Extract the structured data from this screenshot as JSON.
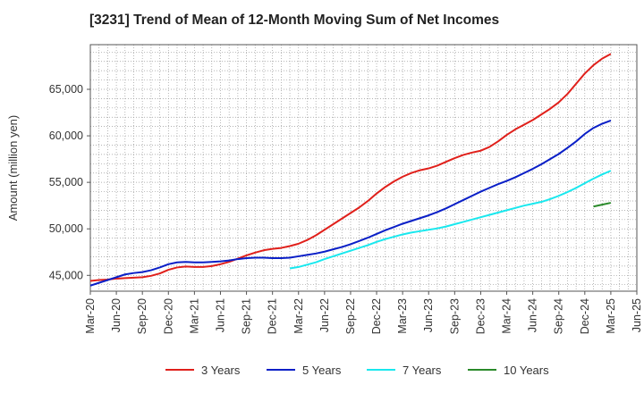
{
  "title": "[3231]  Trend of Mean of 12-Month Moving Sum of Net Incomes",
  "chart_data": {
    "type": "line",
    "title": "[3231]  Trend of Mean of 12-Month Moving Sum of Net Incomes",
    "xlabel": "",
    "ylabel": "Amount (million yen)",
    "ylim": [
      43300,
      69800
    ],
    "yticks": [
      45000,
      50000,
      55000,
      60000,
      65000
    ],
    "ytick_labels": [
      "45,000",
      "50,000",
      "55,000",
      "60,000",
      "65,000"
    ],
    "xticks": [
      "Mar-20",
      "Jun-20",
      "Sep-20",
      "Dec-20",
      "Mar-21",
      "Jun-21",
      "Sep-21",
      "Dec-21",
      "Mar-22",
      "Jun-22",
      "Sep-22",
      "Dec-22",
      "Mar-23",
      "Jun-23",
      "Sep-23",
      "Dec-23",
      "Mar-24",
      "Jun-24",
      "Sep-24",
      "Dec-24",
      "Mar-25",
      "Jun-25"
    ],
    "grid": true,
    "legend_position": "bottom",
    "series": [
      {
        "name": "3 Years",
        "color": "#e0201b",
        "points": [
          [
            "Mar-20",
            44400
          ],
          [
            "Apr-20",
            44500
          ],
          [
            "May-20",
            44550
          ],
          [
            "Jun-20",
            44650
          ],
          [
            "Jul-20",
            44700
          ],
          [
            "Aug-20",
            44750
          ],
          [
            "Sep-20",
            44800
          ],
          [
            "Oct-20",
            44950
          ],
          [
            "Nov-20",
            45200
          ],
          [
            "Dec-20",
            45600
          ],
          [
            "Jan-21",
            45850
          ],
          [
            "Feb-21",
            45950
          ],
          [
            "Mar-21",
            45900
          ],
          [
            "Apr-21",
            45900
          ],
          [
            "May-21",
            46000
          ],
          [
            "Jun-21",
            46200
          ],
          [
            "Jul-21",
            46450
          ],
          [
            "Aug-21",
            46800
          ],
          [
            "Sep-21",
            47150
          ],
          [
            "Oct-21",
            47450
          ],
          [
            "Nov-21",
            47700
          ],
          [
            "Dec-21",
            47850
          ],
          [
            "Jan-22",
            47950
          ],
          [
            "Feb-22",
            48150
          ],
          [
            "Mar-22",
            48400
          ],
          [
            "Apr-22",
            48800
          ],
          [
            "May-22",
            49300
          ],
          [
            "Jun-22",
            49900
          ],
          [
            "Jul-22",
            50500
          ],
          [
            "Aug-22",
            51100
          ],
          [
            "Sep-22",
            51700
          ],
          [
            "Oct-22",
            52300
          ],
          [
            "Nov-22",
            53000
          ],
          [
            "Dec-22",
            53800
          ],
          [
            "Jan-23",
            54500
          ],
          [
            "Feb-23",
            55100
          ],
          [
            "Mar-23",
            55600
          ],
          [
            "Apr-23",
            56000
          ],
          [
            "May-23",
            56300
          ],
          [
            "Jun-23",
            56500
          ],
          [
            "Jul-23",
            56800
          ],
          [
            "Aug-23",
            57200
          ],
          [
            "Sep-23",
            57600
          ],
          [
            "Oct-23",
            57950
          ],
          [
            "Nov-23",
            58200
          ],
          [
            "Dec-23",
            58400
          ],
          [
            "Jan-24",
            58800
          ],
          [
            "Feb-24",
            59400
          ],
          [
            "Mar-24",
            60100
          ],
          [
            "Apr-24",
            60700
          ],
          [
            "May-24",
            61200
          ],
          [
            "Jun-24",
            61700
          ],
          [
            "Jul-24",
            62300
          ],
          [
            "Aug-24",
            62900
          ],
          [
            "Sep-24",
            63600
          ],
          [
            "Oct-24",
            64500
          ],
          [
            "Nov-24",
            65600
          ],
          [
            "Dec-24",
            66700
          ],
          [
            "Jan-25",
            67600
          ],
          [
            "Feb-25",
            68300
          ],
          [
            "Mar-25",
            68800
          ]
        ]
      },
      {
        "name": "5 Years",
        "color": "#0a1fc7",
        "points": [
          [
            "Mar-20",
            43900
          ],
          [
            "Apr-20",
            44200
          ],
          [
            "May-20",
            44500
          ],
          [
            "Jun-20",
            44800
          ],
          [
            "Jul-20",
            45100
          ],
          [
            "Aug-20",
            45250
          ],
          [
            "Sep-20",
            45350
          ],
          [
            "Oct-20",
            45550
          ],
          [
            "Nov-20",
            45850
          ],
          [
            "Dec-20",
            46200
          ],
          [
            "Jan-21",
            46400
          ],
          [
            "Feb-21",
            46450
          ],
          [
            "Mar-21",
            46400
          ],
          [
            "Apr-21",
            46400
          ],
          [
            "May-21",
            46450
          ],
          [
            "Jun-21",
            46500
          ],
          [
            "Jul-21",
            46600
          ],
          [
            "Aug-21",
            46750
          ],
          [
            "Sep-21",
            46850
          ],
          [
            "Oct-21",
            46900
          ],
          [
            "Nov-21",
            46900
          ],
          [
            "Dec-21",
            46850
          ],
          [
            "Jan-22",
            46850
          ],
          [
            "Feb-22",
            46900
          ],
          [
            "Mar-22",
            47050
          ],
          [
            "Apr-22",
            47200
          ],
          [
            "May-22",
            47350
          ],
          [
            "Jun-22",
            47550
          ],
          [
            "Jul-22",
            47800
          ],
          [
            "Aug-22",
            48050
          ],
          [
            "Sep-22",
            48350
          ],
          [
            "Oct-22",
            48700
          ],
          [
            "Nov-22",
            49050
          ],
          [
            "Dec-22",
            49450
          ],
          [
            "Jan-23",
            49850
          ],
          [
            "Feb-23",
            50200
          ],
          [
            "Mar-23",
            50550
          ],
          [
            "Apr-23",
            50850
          ],
          [
            "May-23",
            51150
          ],
          [
            "Jun-23",
            51450
          ],
          [
            "Jul-23",
            51800
          ],
          [
            "Aug-23",
            52200
          ],
          [
            "Sep-23",
            52650
          ],
          [
            "Oct-23",
            53100
          ],
          [
            "Nov-23",
            53550
          ],
          [
            "Dec-23",
            54000
          ],
          [
            "Jan-24",
            54400
          ],
          [
            "Feb-24",
            54800
          ],
          [
            "Mar-24",
            55150
          ],
          [
            "Apr-24",
            55550
          ],
          [
            "May-24",
            56000
          ],
          [
            "Jun-24",
            56450
          ],
          [
            "Jul-24",
            56950
          ],
          [
            "Aug-24",
            57500
          ],
          [
            "Sep-24",
            58050
          ],
          [
            "Oct-24",
            58700
          ],
          [
            "Nov-24",
            59400
          ],
          [
            "Dec-24",
            60200
          ],
          [
            "Jan-25",
            60850
          ],
          [
            "Feb-25",
            61300
          ],
          [
            "Mar-25",
            61650
          ]
        ]
      },
      {
        "name": "7 Years",
        "color": "#19e8ee",
        "points": [
          [
            "Feb-22",
            45750
          ],
          [
            "Mar-22",
            45900
          ],
          [
            "Apr-22",
            46150
          ],
          [
            "May-22",
            46400
          ],
          [
            "Jun-22",
            46750
          ],
          [
            "Jul-22",
            47050
          ],
          [
            "Aug-22",
            47350
          ],
          [
            "Sep-22",
            47650
          ],
          [
            "Oct-22",
            47950
          ],
          [
            "Nov-22",
            48250
          ],
          [
            "Dec-22",
            48600
          ],
          [
            "Jan-23",
            48900
          ],
          [
            "Feb-23",
            49150
          ],
          [
            "Mar-23",
            49400
          ],
          [
            "Apr-23",
            49600
          ],
          [
            "May-23",
            49750
          ],
          [
            "Jun-23",
            49900
          ],
          [
            "Jul-23",
            50050
          ],
          [
            "Aug-23",
            50250
          ],
          [
            "Sep-23",
            50500
          ],
          [
            "Oct-23",
            50750
          ],
          [
            "Nov-23",
            51000
          ],
          [
            "Dec-23",
            51250
          ],
          [
            "Jan-24",
            51500
          ],
          [
            "Feb-24",
            51750
          ],
          [
            "Mar-24",
            52000
          ],
          [
            "Apr-24",
            52250
          ],
          [
            "May-24",
            52500
          ],
          [
            "Jun-24",
            52700
          ],
          [
            "Jul-24",
            52900
          ],
          [
            "Aug-24",
            53200
          ],
          [
            "Sep-24",
            53550
          ],
          [
            "Oct-24",
            53950
          ],
          [
            "Nov-24",
            54400
          ],
          [
            "Dec-24",
            54900
          ],
          [
            "Jan-25",
            55400
          ],
          [
            "Feb-25",
            55850
          ],
          [
            "Mar-25",
            56250
          ]
        ]
      },
      {
        "name": "10 Years",
        "color": "#2a8a2a",
        "points": [
          [
            "Jan-25",
            52400
          ],
          [
            "Feb-25",
            52600
          ],
          [
            "Mar-25",
            52800
          ]
        ]
      }
    ]
  }
}
